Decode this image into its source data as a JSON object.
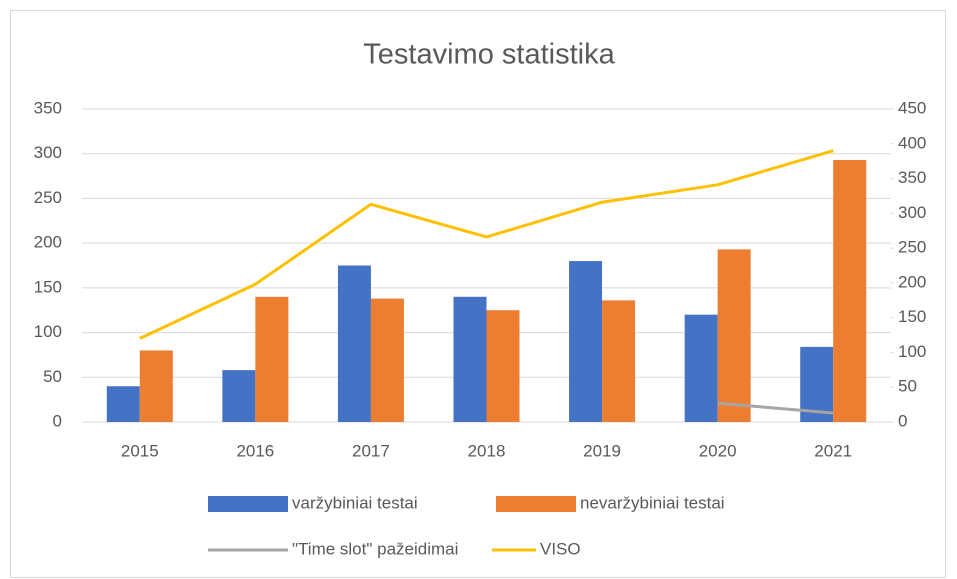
{
  "chart_data": {
    "type": "bar",
    "title": "Testavimo statistika",
    "categories": [
      "2015",
      "2016",
      "2017",
      "2018",
      "2019",
      "2020",
      "2021"
    ],
    "series": [
      {
        "name": "varžybiniai testai",
        "color": "#4472c4",
        "values": [
          40,
          58,
          175,
          140,
          180,
          120,
          84
        ]
      },
      {
        "name": "nevaržybiniai testai",
        "color": "#ed7d31",
        "values": [
          80,
          140,
          138,
          125,
          136,
          193,
          293
        ]
      },
      {
        "name": "\"Time slot\" pažeidimai",
        "color": "#a5a5a5",
        "type": "line",
        "axis": "y2",
        "values": [
          null,
          null,
          null,
          null,
          null,
          27,
          13
        ]
      },
      {
        "name": "VISO",
        "color": "#ffc000",
        "type": "line",
        "axis": "y2",
        "values": [
          120,
          198,
          313,
          266,
          316,
          341,
          390
        ]
      }
    ],
    "ylim": [
      0,
      350
    ],
    "yticks": [
      0,
      50,
      100,
      150,
      200,
      250,
      300,
      350
    ],
    "y2lim": [
      0,
      450
    ],
    "y2ticks": [
      0,
      50,
      100,
      150,
      200,
      250,
      300,
      350,
      400,
      450
    ],
    "grid": true,
    "legend": "bottom"
  }
}
